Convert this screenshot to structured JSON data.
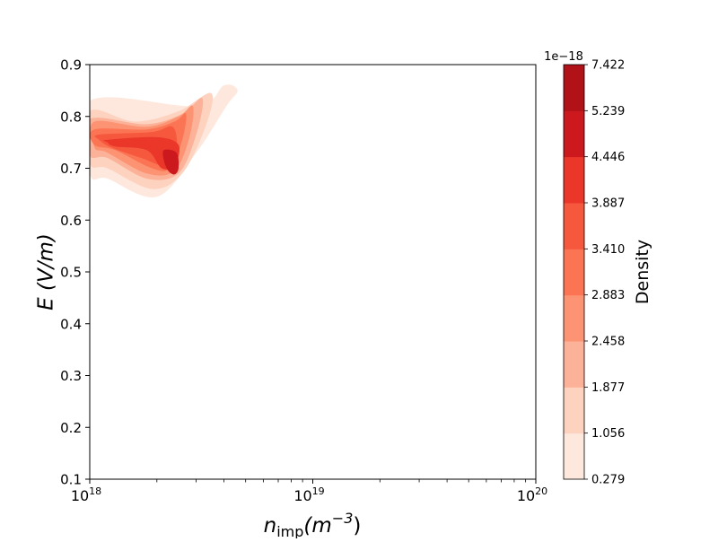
{
  "chart_data": {
    "type": "heatmap",
    "subtype": "kde-filled-contour",
    "xlabel": {
      "base": "n",
      "subscript": "imp",
      "unit_base": "(m",
      "unit_exp": "−3",
      "unit_close": ")"
    },
    "ylabel": "E (V/m)",
    "x_scale": "log",
    "xlim": [
      1e+18,
      1e+20
    ],
    "ylim": [
      0.1,
      0.9
    ],
    "x_ticks": [
      {
        "value": 1e+18,
        "base": "10",
        "exp": "18"
      },
      {
        "value": 1e+19,
        "base": "10",
        "exp": "19"
      },
      {
        "value": 1e+20,
        "base": "10",
        "exp": "20"
      }
    ],
    "y_ticks": [
      "0.1",
      "0.2",
      "0.3",
      "0.4",
      "0.5",
      "0.6",
      "0.7",
      "0.8",
      "0.9"
    ],
    "grid": false,
    "colormap": "Reds",
    "colorbar": {
      "label": "Density",
      "offset_text": "1e−18",
      "levels": [
        "0.279",
        "1.056",
        "1.877",
        "2.458",
        "2.883",
        "3.410",
        "3.887",
        "4.446",
        "5.239",
        "7.422"
      ],
      "colors": [
        "#fee8de",
        "#fdd2bf",
        "#fcb298",
        "#fc9474",
        "#fb7555",
        "#f6583e",
        "#eb372a",
        "#cc191e",
        "#b11218"
      ]
    },
    "density_peak": {
      "x": 2.3e+18,
      "y": 0.705
    },
    "contour_regions": [
      {
        "level": 1,
        "x": [
          1e+18,
          3e+18,
          4e+18,
          4.6e+18,
          4.1e+18,
          3e+18,
          2e+18,
          1.2e+18,
          1e+18
        ],
        "y": [
          0.83,
          0.82,
          0.86,
          0.85,
          0.82,
          0.73,
          0.645,
          0.68,
          0.69
        ]
      },
      {
        "level": 2,
        "x": [
          1e+18,
          1.6e+18,
          2.5e+18,
          3.5e+18,
          3.3e+18,
          2.6e+18,
          1.9e+18,
          1.2e+18,
          1e+18
        ],
        "y": [
          0.81,
          0.79,
          0.81,
          0.845,
          0.78,
          0.69,
          0.66,
          0.7,
          0.71
        ]
      },
      {
        "level": 3,
        "x": [
          1e+18,
          1.8e+18,
          2.6e+18,
          3.2e+18,
          3e+18,
          2.5e+18,
          1.8e+18,
          1.2e+18,
          1e+18
        ],
        "y": [
          0.795,
          0.785,
          0.805,
          0.835,
          0.765,
          0.69,
          0.68,
          0.72,
          0.725
        ]
      },
      {
        "level": 4,
        "x": [
          1.05e+18,
          1.8e+18,
          2.5e+18,
          2.9e+18,
          2.8e+18,
          2.4e+18,
          1.8e+18,
          1.2e+18,
          1.05e+18
        ],
        "y": [
          0.79,
          0.78,
          0.8,
          0.82,
          0.76,
          0.695,
          0.69,
          0.73,
          0.74
        ]
      },
      {
        "level": 5,
        "x": [
          1.05e+18,
          1.8e+18,
          2.4e+18,
          2.7e+18,
          2.6e+18,
          2.3e+18,
          1.9e+18,
          1.3e+18,
          1.05e+18
        ],
        "y": [
          0.775,
          0.775,
          0.79,
          0.805,
          0.755,
          0.7,
          0.7,
          0.735,
          0.745
        ]
      },
      {
        "level": 6,
        "x": [
          1.1e+18,
          1.9e+18,
          2.35e+18,
          2.45e+18,
          2.2e+18,
          1.7e+18,
          1.25e+18,
          1.1e+18
        ],
        "y": [
          0.765,
          0.77,
          0.78,
          0.74,
          0.705,
          0.72,
          0.74,
          0.755
        ]
      },
      {
        "level": 7,
        "x": [
          1.2e+18,
          2e+18,
          2.5e+18,
          2.4e+18,
          2.1e+18,
          1.8e+18,
          1.3e+18,
          1.2e+18
        ],
        "y": [
          0.755,
          0.76,
          0.745,
          0.705,
          0.7,
          0.735,
          0.742,
          0.75
        ]
      },
      {
        "level": 8,
        "x": [
          2.15e+18,
          2.45e+18,
          2.5e+18,
          2.4e+18,
          2.25e+18,
          2.15e+18
        ],
        "y": [
          0.735,
          0.73,
          0.7,
          0.688,
          0.695,
          0.715
        ]
      }
    ]
  }
}
